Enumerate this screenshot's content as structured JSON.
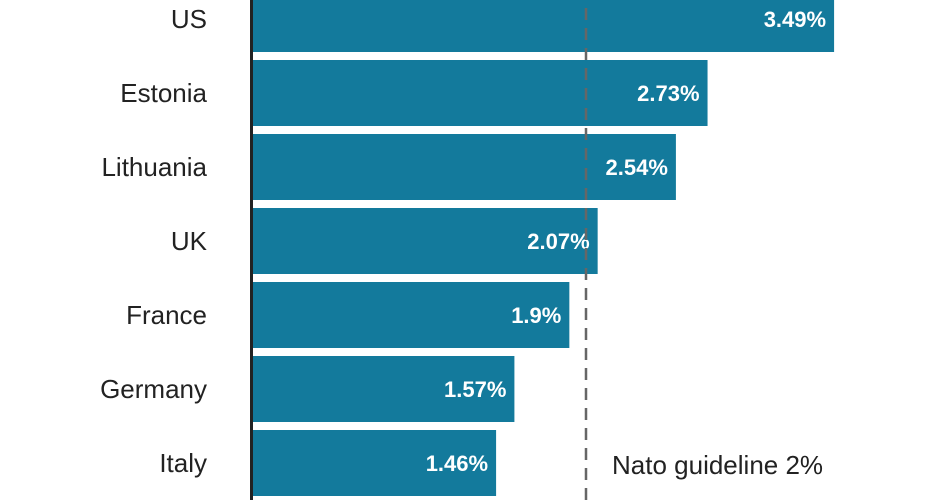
{
  "chart_data": {
    "type": "bar",
    "orientation": "horizontal",
    "categories": [
      "US",
      "Estonia",
      "Lithuania",
      "UK",
      "France",
      "Germany",
      "Italy"
    ],
    "values": [
      3.49,
      2.73,
      2.54,
      2.07,
      1.9,
      1.57,
      1.46
    ],
    "value_labels": [
      "3.49%",
      "2.73%",
      "2.54%",
      "2.07%",
      "1.9%",
      "1.57%",
      "1.46%"
    ],
    "xlim": [
      0,
      3.7
    ],
    "reference_line": {
      "value": 2,
      "label": "Nato guideline 2%",
      "style": "dashed"
    },
    "bar_color": "#137a9c",
    "grid": false
  }
}
